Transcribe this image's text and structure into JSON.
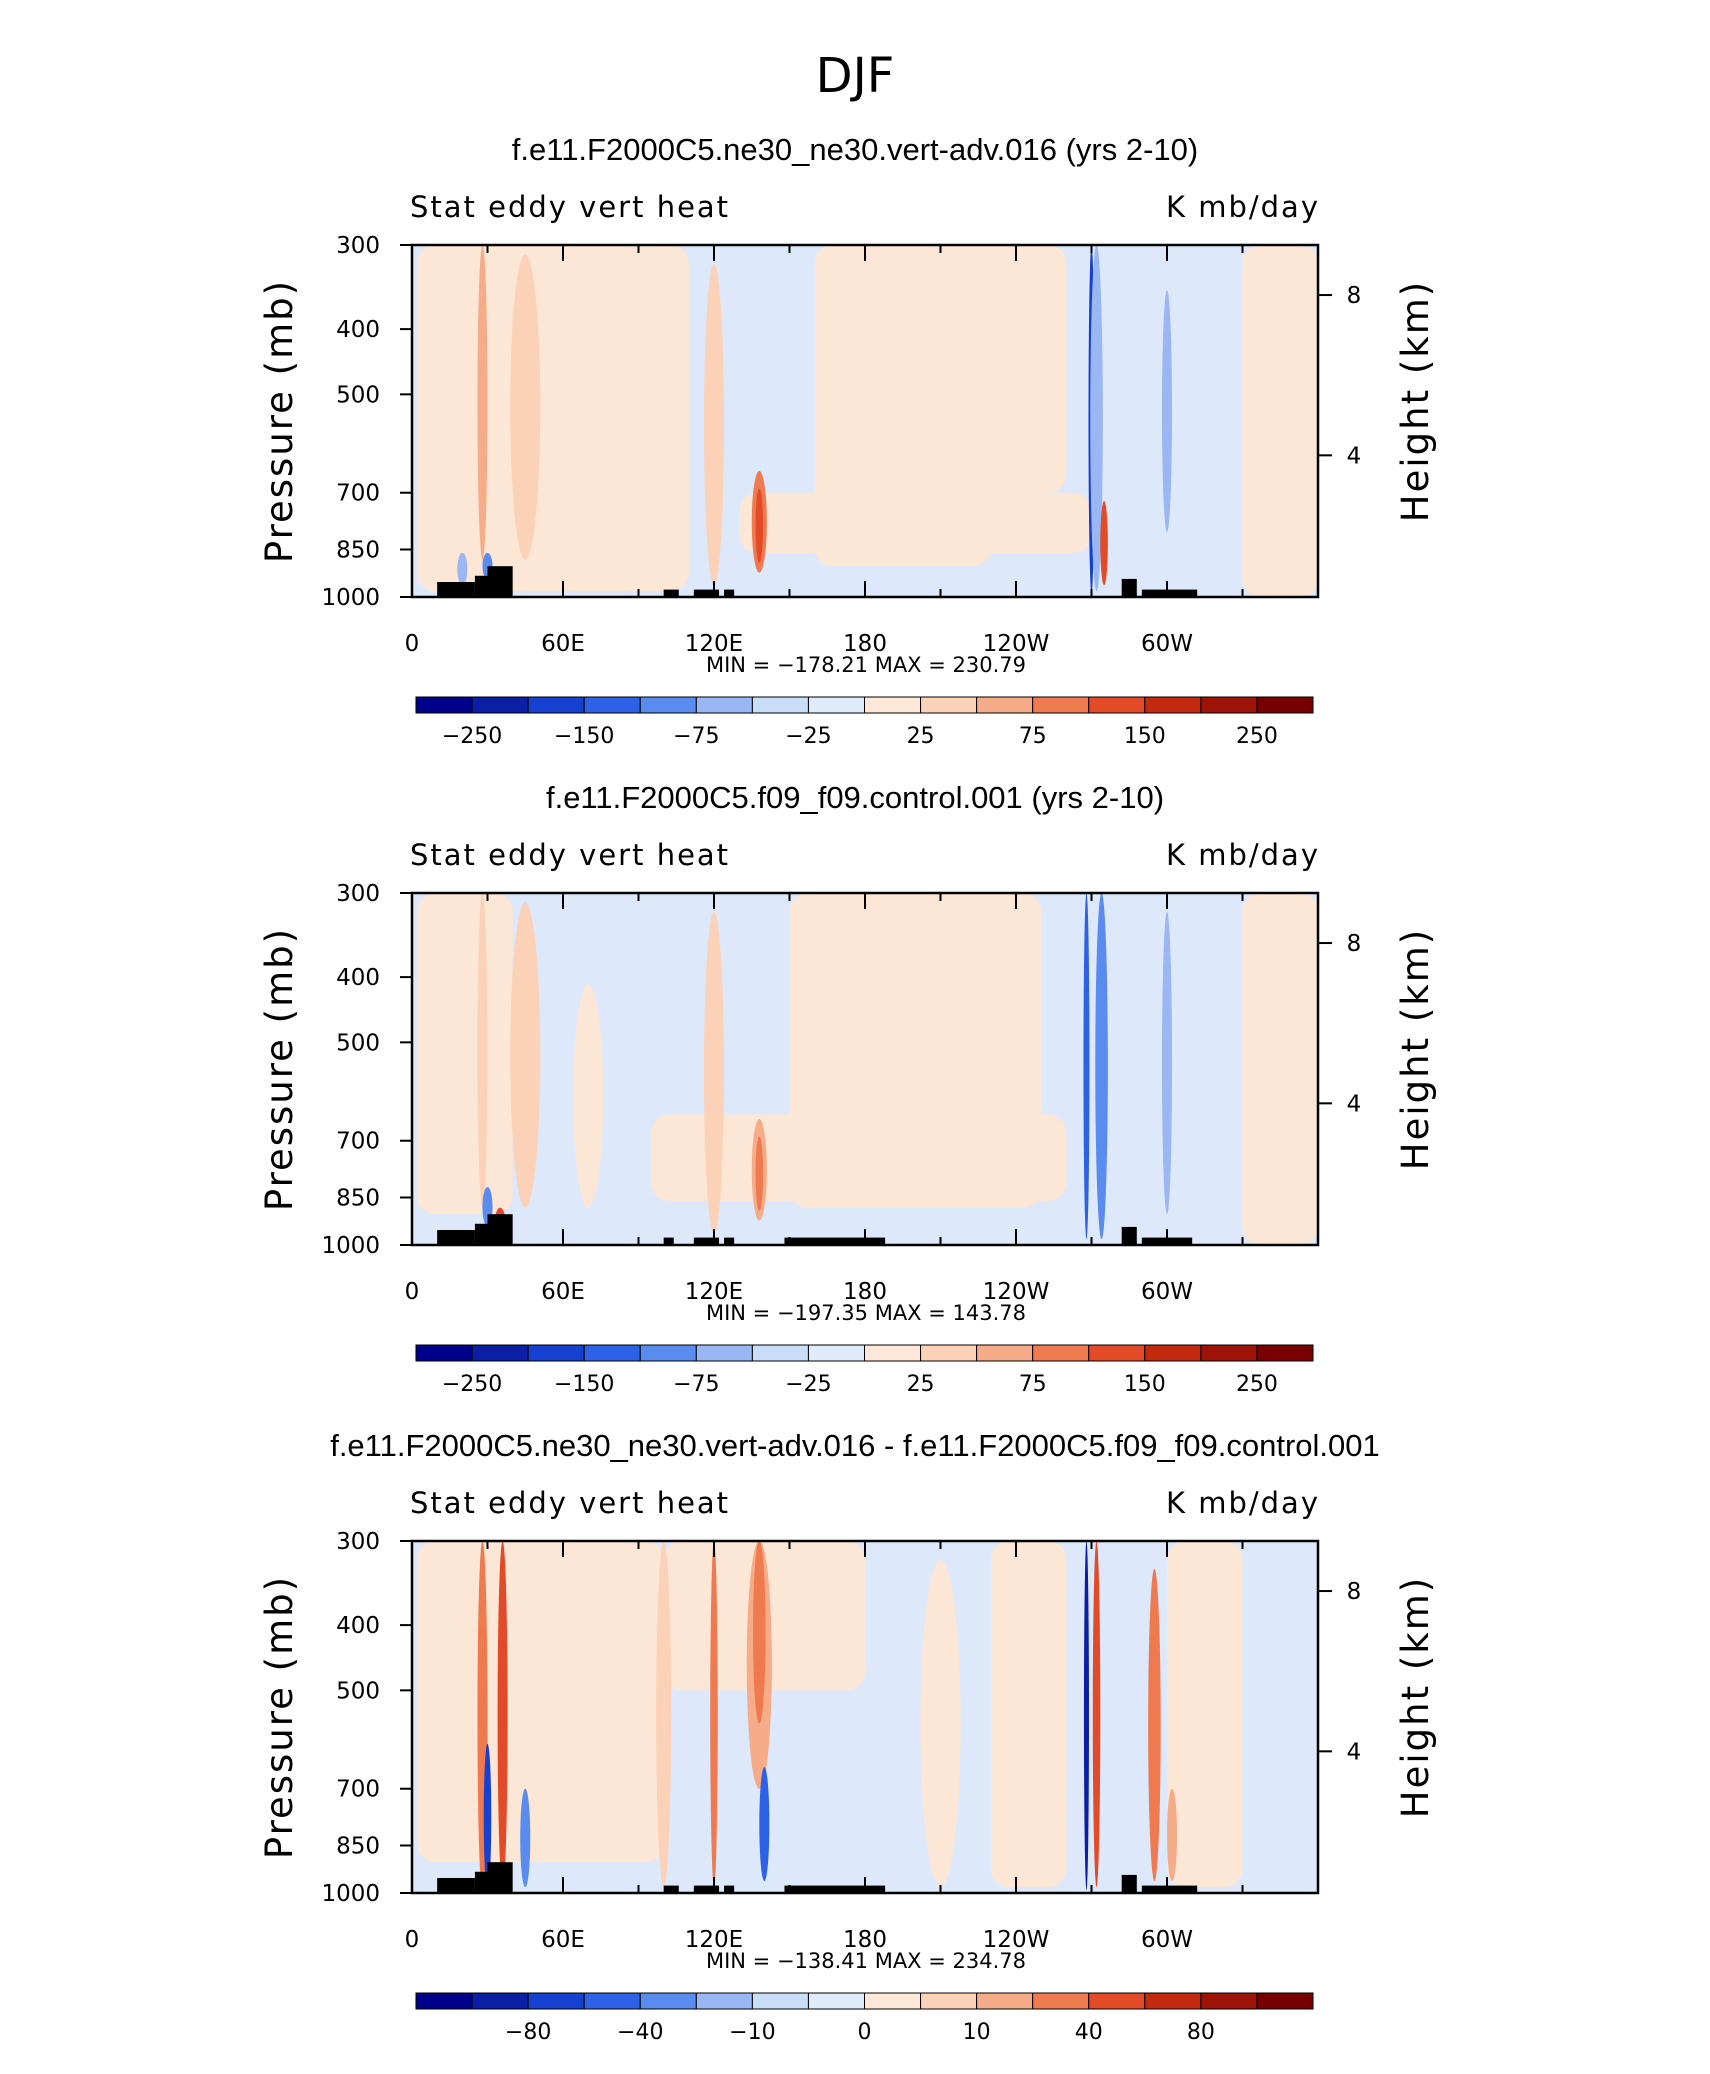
{
  "figure_title": "DJF",
  "chart_data": [
    {
      "type": "heatmap",
      "title": "f.e11.F2000C5.ne30_ne30.vert-adv.016 (yrs 2-10)",
      "left_label": "Stat eddy vert heat",
      "right_label": "K mb/day",
      "xlabel": "",
      "ylabel": "Pressure (mb)",
      "y2label": "Height (km)",
      "x_ticks": [
        "0",
        "60E",
        "120E",
        "180",
        "120W",
        "60W"
      ],
      "y_ticks": [
        "300",
        "400",
        "500",
        "700",
        "850",
        "1000"
      ],
      "y2_ticks": [
        "8",
        "4"
      ],
      "minmax": "MIN = −178.21   MAX = 230.79",
      "min": -178.21,
      "max": 230.79,
      "colorbar_labels": [
        "−250",
        "−150",
        "−75",
        "−25",
        "25",
        "75",
        "150",
        "250"
      ]
    },
    {
      "type": "heatmap",
      "title": "f.e11.F2000C5.f09_f09.control.001 (yrs 2-10)",
      "left_label": "Stat eddy vert heat",
      "right_label": "K mb/day",
      "xlabel": "",
      "ylabel": "Pressure (mb)",
      "y2label": "Height (km)",
      "x_ticks": [
        "0",
        "60E",
        "120E",
        "180",
        "120W",
        "60W"
      ],
      "y_ticks": [
        "300",
        "400",
        "500",
        "700",
        "850",
        "1000"
      ],
      "y2_ticks": [
        "8",
        "4"
      ],
      "minmax": "MIN = −197.35   MAX = 143.78",
      "min": -197.35,
      "max": 143.78,
      "colorbar_labels": [
        "−250",
        "−150",
        "−75",
        "−25",
        "25",
        "75",
        "150",
        "250"
      ]
    },
    {
      "type": "heatmap",
      "title": "f.e11.F2000C5.ne30_ne30.vert-adv.016 - f.e11.F2000C5.f09_f09.control.001",
      "left_label": "Stat eddy vert heat",
      "right_label": "K mb/day",
      "xlabel": "",
      "ylabel": "Pressure (mb)",
      "y2label": "Height (km)",
      "x_ticks": [
        "0",
        "60E",
        "120E",
        "180",
        "120W",
        "60W"
      ],
      "y_ticks": [
        "300",
        "400",
        "500",
        "700",
        "850",
        "1000"
      ],
      "y2_ticks": [
        "8",
        "4"
      ],
      "minmax": "MIN = −138.41   MAX = 234.78",
      "min": -138.41,
      "max": 234.78,
      "colorbar_labels": [
        "−80",
        "−40",
        "−10",
        "0",
        "10",
        "40",
        "80"
      ]
    }
  ],
  "colors": {
    "colorbar": [
      "#00008b",
      "#0a1ea6",
      "#1640d0",
      "#2e62e6",
      "#5a8cf0",
      "#9ab7f4",
      "#c9dcf8",
      "#dfeafb",
      "#fde7d8",
      "#fbd2b8",
      "#f6ac88",
      "#ef7a50",
      "#e24a28",
      "#c32a10",
      "#9e1208",
      "#780000"
    ],
    "field_cool": "#dde8fb",
    "field_warm": "#fce6d6",
    "topography": "#000000"
  }
}
